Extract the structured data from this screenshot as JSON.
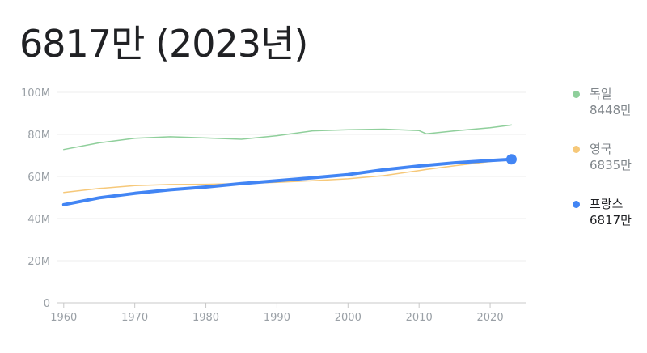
{
  "headline": "6817만 (2023년)",
  "chart_data": {
    "type": "line",
    "x": [
      1960,
      1965,
      1970,
      1975,
      1980,
      1985,
      1990,
      1995,
      2000,
      2005,
      2010,
      2011,
      2015,
      2020,
      2023
    ],
    "ylim": [
      0,
      100000000
    ],
    "xlim": [
      1959,
      2025
    ],
    "y_ticks": [
      {
        "value": 0,
        "label": "0"
      },
      {
        "value": 20000000,
        "label": "20M"
      },
      {
        "value": 40000000,
        "label": "40M"
      },
      {
        "value": 60000000,
        "label": "60M"
      },
      {
        "value": 80000000,
        "label": "80M"
      },
      {
        "value": 100000000,
        "label": "100M"
      }
    ],
    "x_ticks": [
      1960,
      1970,
      1980,
      1990,
      2000,
      2010,
      2020
    ],
    "grid": true,
    "legend_position": "right",
    "series": [
      {
        "name": "독일",
        "label": "8448만",
        "color": "#8fcf9b",
        "highlight": false,
        "values": [
          72800000,
          76000000,
          78200000,
          78900000,
          78300000,
          77700000,
          79400000,
          81700000,
          82200000,
          82500000,
          81800000,
          80300000,
          81700000,
          83200000,
          84480000
        ]
      },
      {
        "name": "영국",
        "label": "6835만",
        "color": "#f6c879",
        "highlight": false,
        "values": [
          52400000,
          54300000,
          55700000,
          56200000,
          56300000,
          56600000,
          57200000,
          58000000,
          58900000,
          60400000,
          62800000,
          63300000,
          65100000,
          67100000,
          68350000
        ]
      },
      {
        "name": "프랑스",
        "label": "6817만",
        "color": "#4285f4",
        "highlight": true,
        "values": [
          46600000,
          49900000,
          52000000,
          53700000,
          55000000,
          56600000,
          58000000,
          59400000,
          60900000,
          63200000,
          65000000,
          65300000,
          66500000,
          67600000,
          68170000
        ]
      }
    ]
  }
}
